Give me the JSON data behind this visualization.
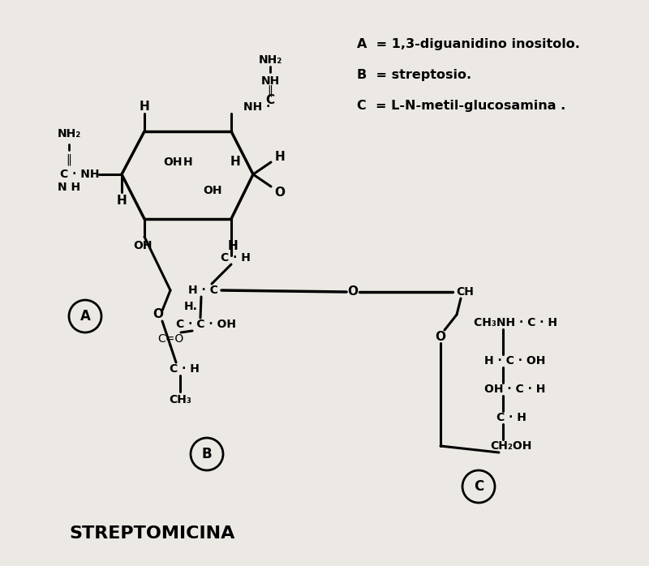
{
  "title": "STREPTOMICINA",
  "bg_color": "#ece9e4",
  "legend_lines": [
    "A  = 1,3-diguanidino inositolo.",
    "B  = streptosio.",
    "C  = L-N-metil-glucosamina ."
  ]
}
